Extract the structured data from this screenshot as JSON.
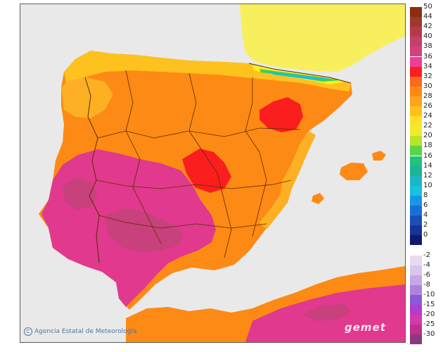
{
  "map": {
    "credit": "Agencia Estatal de Meteorología",
    "watermark": "gemet",
    "colors": {
      "sea": "#e9e9e9",
      "land_base": "#fd8a14",
      "hot_magenta": "#e0398d",
      "hot_red": "#fb1e1e",
      "mild_orange": "#fdb023",
      "cool_yellow": "#fdee24",
      "alpine_green": "#3bd257",
      "alpine_cyan": "#1fbfd0",
      "france_yellow": "#f8ef5e",
      "border": "#5a2d00"
    }
  },
  "legend": [
    {
      "label": "50",
      "color": "#8b2e0f"
    },
    {
      "label": "44",
      "color": "#9c3a2c"
    },
    {
      "label": "42",
      "color": "#b43a4a"
    },
    {
      "label": "40",
      "color": "#c33f6d"
    },
    {
      "label": "38",
      "color": "#d6407b"
    },
    {
      "label": "36",
      "color": "#f03c9a"
    },
    {
      "label": "34",
      "color": "#fb1e1e"
    },
    {
      "label": "32",
      "color": "#fd6a1e"
    },
    {
      "label": "30",
      "color": "#fd8a14"
    },
    {
      "label": "28",
      "color": "#fda41c"
    },
    {
      "label": "26",
      "color": "#fdc21e"
    },
    {
      "label": "24",
      "color": "#fde128"
    },
    {
      "label": "22",
      "color": "#f0ec2a"
    },
    {
      "label": "20",
      "color": "#b9e42a"
    },
    {
      "label": "18",
      "color": "#5bd34a"
    },
    {
      "label": "16",
      "color": "#23c27a"
    },
    {
      "label": "14",
      "color": "#1bb49c"
    },
    {
      "label": "12",
      "color": "#1bb7c2"
    },
    {
      "label": "10",
      "color": "#17c1e0"
    },
    {
      "label": "8",
      "color": "#1896e4"
    },
    {
      "label": "6",
      "color": "#1a6fd6"
    },
    {
      "label": "4",
      "color": "#1a4fb8"
    },
    {
      "label": "2",
      "color": "#163596"
    },
    {
      "label": "0",
      "color": "#0d1b6e"
    },
    {
      "label": "",
      "color": "#ffffff"
    },
    {
      "label": "-2",
      "color": "#e8dbf0"
    },
    {
      "label": "-4",
      "color": "#d9c6ec"
    },
    {
      "label": "-6",
      "color": "#c6a8e6"
    },
    {
      "label": "-8",
      "color": "#ad83e0"
    },
    {
      "label": "-10",
      "color": "#8f58d6"
    },
    {
      "label": "-15",
      "color": "#b43ccf"
    },
    {
      "label": "-20",
      "color": "#d439b1"
    },
    {
      "label": "-25",
      "color": "#c02f8d"
    },
    {
      "label": "-30",
      "color": "#8a3a82"
    }
  ]
}
